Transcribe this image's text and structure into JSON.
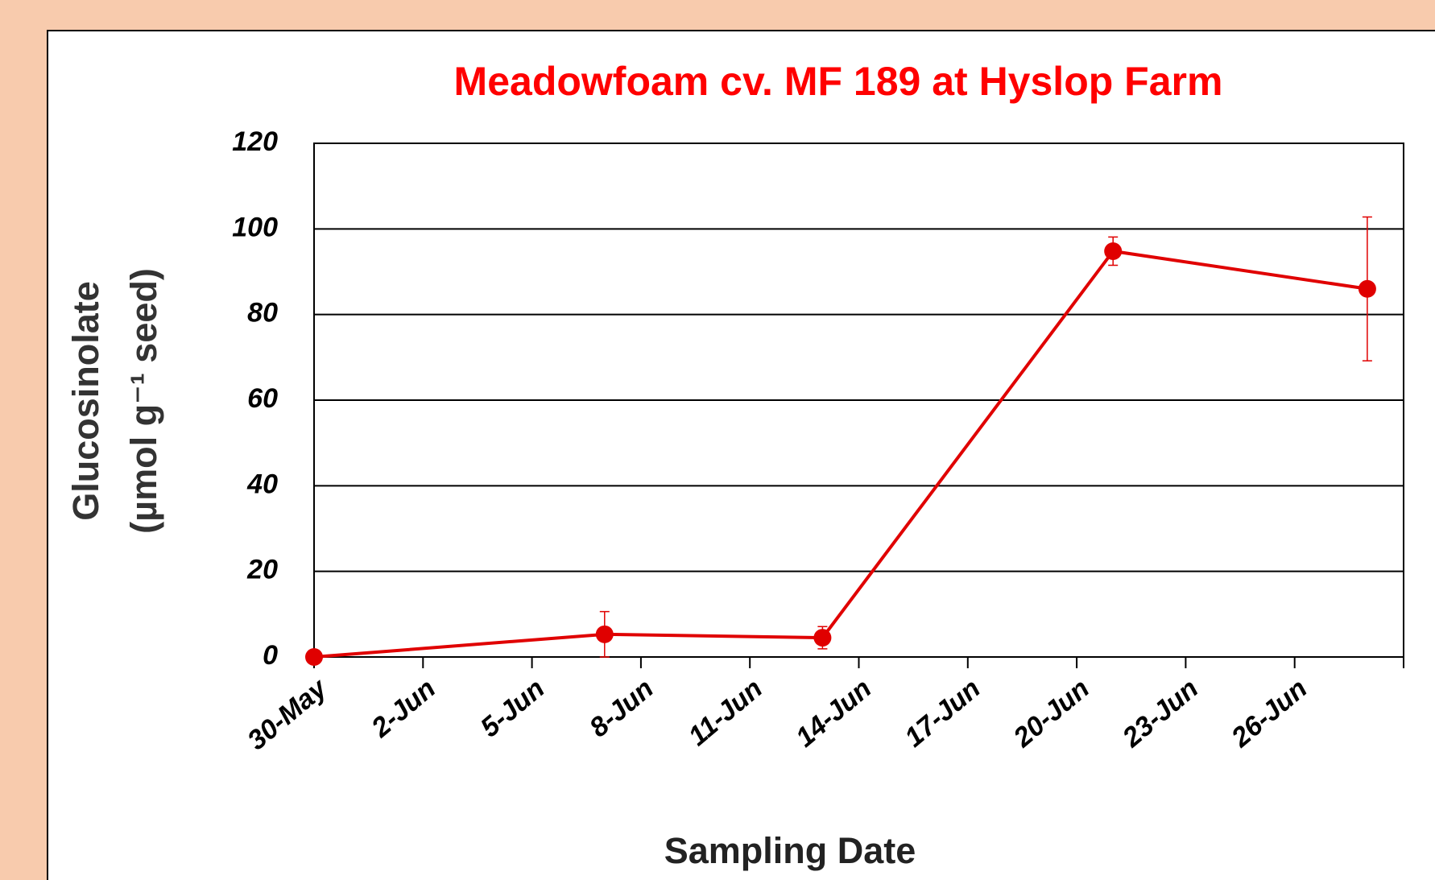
{
  "chart_data": {
    "type": "line",
    "title": "Meadowfoam cv. MF 189 at Hyslop Farm",
    "xlabel": "Sampling Date",
    "ylabel": [
      "Glucosinolate",
      "(µmol g⁻¹ seed)"
    ],
    "x": [
      "05-30",
      "06-07",
      "06-13",
      "06-21",
      "06-28"
    ],
    "series": [
      {
        "name": "MF 189",
        "color": "#e00000",
        "values": [
          0,
          5.3,
          4.5,
          94.8,
          86
        ],
        "errors": [
          0,
          5.3,
          2.6,
          3.3,
          16.8
        ]
      }
    ],
    "xlim": [
      "05-30",
      "06-29"
    ],
    "xticks": [
      {
        "value": "05-30",
        "label": "30-May"
      },
      {
        "value": "06-02",
        "label": "2-Jun"
      },
      {
        "value": "06-05",
        "label": "5-Jun"
      },
      {
        "value": "06-08",
        "label": "8-Jun"
      },
      {
        "value": "06-11",
        "label": "11-Jun"
      },
      {
        "value": "06-14",
        "label": "14-Jun"
      },
      {
        "value": "06-17",
        "label": "17-Jun"
      },
      {
        "value": "06-20",
        "label": "20-Jun"
      },
      {
        "value": "06-23",
        "label": "23-Jun"
      },
      {
        "value": "06-26",
        "label": "26-Jun"
      },
      {
        "value": "06-29",
        "label": ""
      }
    ],
    "ylim": [
      0,
      120
    ],
    "yticks": [
      0,
      20,
      40,
      60,
      80,
      100,
      120
    ],
    "grid": true,
    "title_color": "#ff0000"
  }
}
